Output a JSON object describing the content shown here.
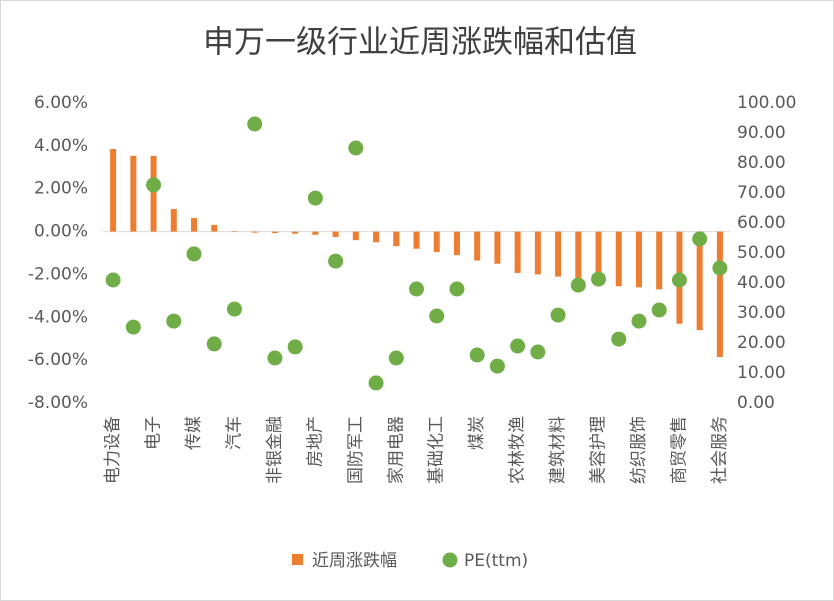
{
  "chart_data": {
    "type": "bar_scatter",
    "title": "申万一级行业近周涨跌幅和估值",
    "categories": [
      "电力设备",
      null,
      "电子",
      null,
      "传媒",
      null,
      "汽车",
      null,
      "非银金融",
      null,
      "房地产",
      null,
      "国防军工",
      null,
      "家用电器",
      null,
      "基础化工",
      null,
      "煤炭",
      null,
      "农林牧渔",
      null,
      "建筑材料",
      null,
      "美容护理",
      null,
      "纺织服饰",
      null,
      "商贸零售",
      null,
      "社会服务"
    ],
    "series": [
      {
        "name": "近周涨跌幅",
        "type": "bar",
        "color": "#ed7d31",
        "values": [
          3.85,
          3.53,
          3.53,
          1.05,
          0.63,
          0.31,
          0.02,
          -0.05,
          -0.07,
          -0.1,
          -0.15,
          -0.25,
          -0.4,
          -0.5,
          -0.68,
          -0.8,
          -0.95,
          -1.1,
          -1.35,
          -1.5,
          -1.93,
          -2.0,
          -2.1,
          -2.3,
          -2.45,
          -2.55,
          -2.6,
          -2.7,
          -4.3,
          -4.6,
          -5.85
        ]
      },
      {
        "name": "PE(ttm)",
        "type": "scatter",
        "axis": "y2",
        "color": "#70ad47",
        "values": [
          41,
          25.3,
          72.7,
          27.3,
          49.7,
          19.7,
          31.3,
          93,
          15,
          18.7,
          68.3,
          47.3,
          85,
          6.7,
          15,
          38,
          29,
          38,
          16,
          12.3,
          19,
          17,
          29.3,
          39.3,
          41.3,
          21.3,
          27.3,
          31,
          41,
          54.7,
          45
        ]
      }
    ],
    "ylim": [
      -8,
      6
    ],
    "yticks": [
      {
        "value": -8,
        "label": "-8.00%"
      },
      {
        "value": -6,
        "label": "-6.00%"
      },
      {
        "value": -4,
        "label": "-4.00%"
      },
      {
        "value": -2,
        "label": "-2.00%"
      },
      {
        "value": 0,
        "label": "0.00%"
      },
      {
        "value": 2,
        "label": "2.00%"
      },
      {
        "value": 4,
        "label": "4.00%"
      },
      {
        "value": 6,
        "label": "6.00%"
      }
    ],
    "y2lim": [
      0,
      100
    ],
    "y2ticks": [
      {
        "value": 0,
        "label": "0.00"
      },
      {
        "value": 10,
        "label": "10.00"
      },
      {
        "value": 20,
        "label": "20.00"
      },
      {
        "value": 30,
        "label": "30.00"
      },
      {
        "value": 40,
        "label": "40.00"
      },
      {
        "value": 50,
        "label": "50.00"
      },
      {
        "value": 60,
        "label": "60.00"
      },
      {
        "value": 70,
        "label": "70.00"
      },
      {
        "value": 80,
        "label": "80.00"
      },
      {
        "value": 90,
        "label": "90.00"
      },
      {
        "value": 100,
        "label": "100.00"
      }
    ],
    "grid": false,
    "legend": "bottom"
  }
}
